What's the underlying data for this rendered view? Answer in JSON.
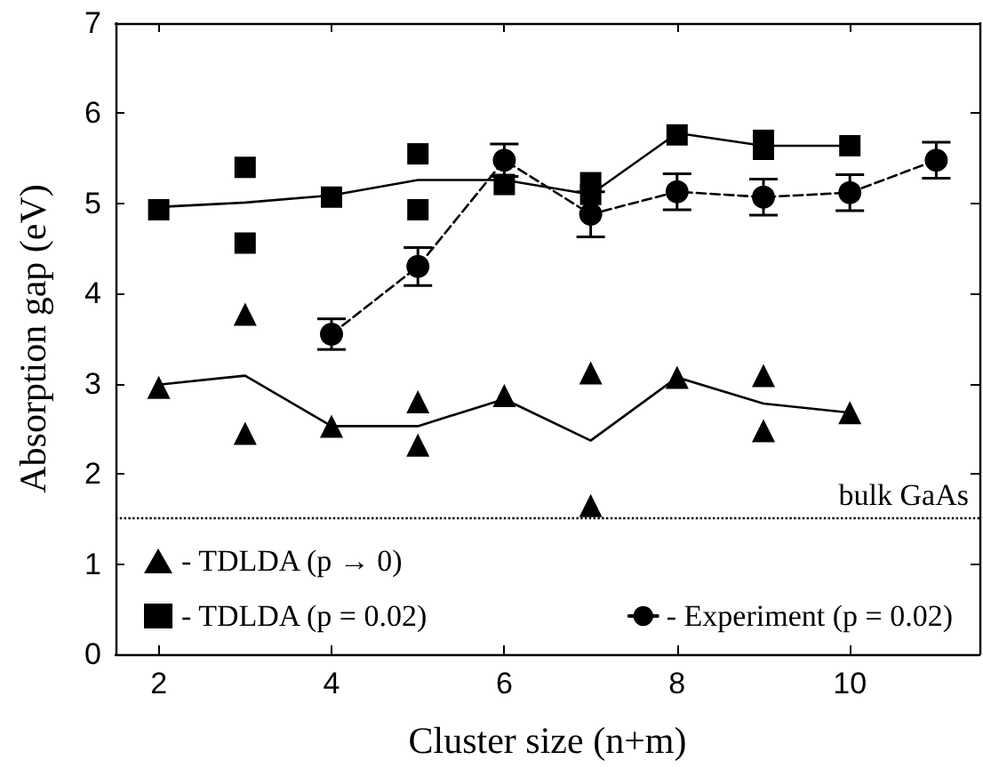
{
  "chart_data": {
    "type": "scatter",
    "xlabel": "Cluster size (n+m)",
    "ylabel": "Absorption gap (eV)",
    "xlim": [
      1.5,
      11.5
    ],
    "xticks": [
      2,
      4,
      6,
      8,
      10
    ],
    "ylim": [
      0,
      7
    ],
    "yticks": [
      0,
      1,
      2,
      3,
      4,
      5,
      6,
      7
    ],
    "legend": "bottom",
    "series": [
      {
        "name": "- TDLDA (p → 0)",
        "marker": "triangle",
        "color": "#000000",
        "x": [
          2,
          3,
          3,
          4,
          5,
          5,
          6,
          7,
          7,
          8,
          9,
          9,
          10
        ],
        "values": [
          2.96,
          3.77,
          2.45,
          2.53,
          2.8,
          2.32,
          2.87,
          3.12,
          1.65,
          3.07,
          3.09,
          2.48,
          2.68
        ]
      },
      {
        "type": "line",
        "marker": "none",
        "line_style": "solid",
        "color": "#000000",
        "x": [
          2,
          3,
          4,
          5,
          6,
          7,
          8,
          9,
          10
        ],
        "values": [
          2.99,
          3.09,
          2.53,
          2.53,
          2.83,
          2.37,
          3.07,
          2.78,
          2.68
        ]
      },
      {
        "name": "- TDLDA (p = 0.02)",
        "marker": "square",
        "color": "#000000",
        "x": [
          2,
          3,
          3,
          4,
          5,
          5,
          6,
          7,
          7,
          8,
          9,
          9,
          10
        ],
        "values": [
          4.93,
          5.4,
          4.56,
          5.07,
          5.55,
          4.93,
          5.21,
          5.23,
          5.1,
          5.76,
          5.7,
          5.6,
          5.64
        ]
      },
      {
        "type": "line",
        "marker": "none",
        "line_style": "solid",
        "color": "#000000",
        "x": [
          2,
          3,
          4,
          5,
          6,
          7,
          8,
          9,
          10
        ],
        "values": [
          4.96,
          5.01,
          5.09,
          5.26,
          5.26,
          5.1,
          5.78,
          5.64,
          5.64
        ]
      },
      {
        "name": "- Experiment (p = 0.02)",
        "type": "line",
        "marker": "circle",
        "line_style": "dashed",
        "color": "#000000",
        "x": [
          4,
          5,
          6,
          7,
          8,
          9,
          10,
          11
        ],
        "values": [
          3.55,
          4.3,
          5.48,
          4.88,
          5.13,
          5.07,
          5.12,
          5.48
        ],
        "errors": [
          0.17,
          0.21,
          0.18,
          0.25,
          0.2,
          0.2,
          0.2,
          0.2
        ]
      }
    ],
    "ref_lines": [
      {
        "axis": "y",
        "value": 1.52,
        "label": "bulk GaAs",
        "line_style": "dotted",
        "color": "#000000"
      }
    ]
  }
}
